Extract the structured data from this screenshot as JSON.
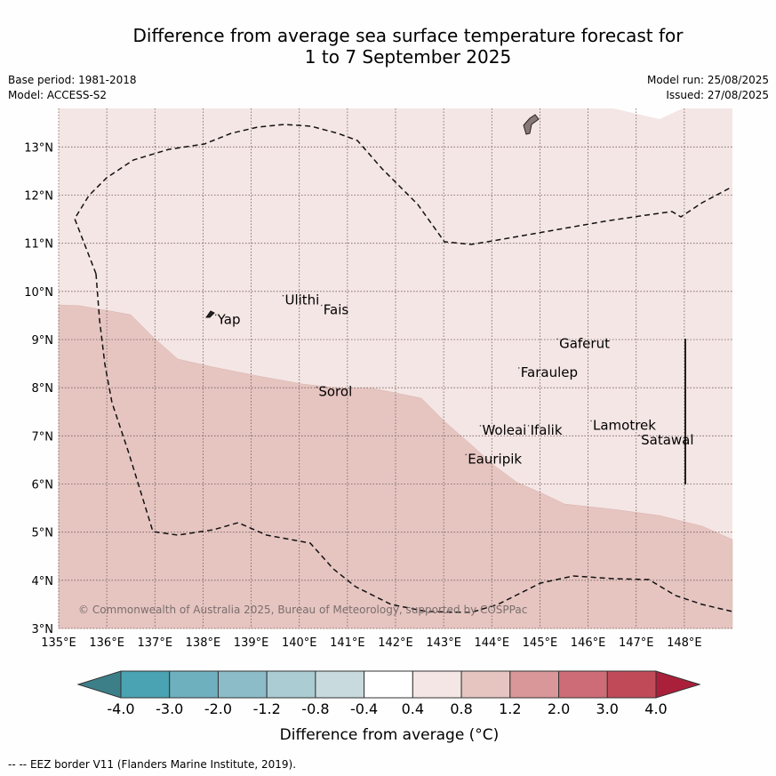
{
  "title_line1": "Difference from average sea surface temperature forecast for",
  "title_line2": "1 to 7 September 2025",
  "base_period": "Base period: 1981-2018",
  "model": "Model: ACCESS-S2",
  "model_run": "Model run: 25/08/2025",
  "issued": "Issued: 27/08/2025",
  "copyright": "© Commonwealth of Australia 2025, Bureau of Meteorology, supported by COSPPac",
  "x_ticks": [
    "135°E",
    "136°E",
    "137°E",
    "138°E",
    "139°E",
    "140°E",
    "141°E",
    "142°E",
    "143°E",
    "144°E",
    "145°E",
    "146°E",
    "147°E",
    "148°E"
  ],
  "y_ticks": [
    "3°N",
    "4°N",
    "5°N",
    "6°N",
    "7°N",
    "8°N",
    "9°N",
    "10°N",
    "11°N",
    "12°N",
    "13°N"
  ],
  "places": [
    {
      "name": "Yap",
      "lon": 138.3,
      "lat": 9.4
    },
    {
      "name": "Ulithi",
      "lon": 139.7,
      "lat": 9.8
    },
    {
      "name": "Fais",
      "lon": 140.5,
      "lat": 9.6
    },
    {
      "name": "Sorol",
      "lon": 140.4,
      "lat": 7.9
    },
    {
      "name": "Gaferut",
      "lon": 145.4,
      "lat": 8.9
    },
    {
      "name": "Faraulep",
      "lon": 144.6,
      "lat": 8.3
    },
    {
      "name": "Woleai",
      "lon": 143.8,
      "lat": 7.1
    },
    {
      "name": "Ifalik",
      "lon": 144.8,
      "lat": 7.1
    },
    {
      "name": "Lamotrek",
      "lon": 146.1,
      "lat": 7.2
    },
    {
      "name": "Satawal",
      "lon": 147.1,
      "lat": 6.9
    },
    {
      "name": "Eauripik",
      "lon": 143.5,
      "lat": 6.5
    }
  ],
  "colorbar": {
    "labels": [
      "-4.0",
      "-3.0",
      "-2.0",
      "-1.2",
      "-0.8",
      "-0.4",
      "0.4",
      "0.8",
      "1.2",
      "2.0",
      "3.0",
      "4.0"
    ],
    "colors": [
      "#4aa3b2",
      "#6fb0bf",
      "#8cbcc8",
      "#abccd3",
      "#c8dade",
      "#ffffff",
      "#f4e6e4",
      "#e6c5c1",
      "#d9979a",
      "#cd6c76",
      "#c14a59"
    ],
    "low_color": "#3d7f89",
    "high_color": "#aa1f3a",
    "label": "Difference from average ($^\\circ$C)"
  },
  "colorbar_label": "Difference from average (°C)",
  "footer": "-- -- EEZ border V11 (Flanders Marine Institute, 2019).",
  "fill_low": "#f4e6e4",
  "fill_mid": "#e6c5c1"
}
